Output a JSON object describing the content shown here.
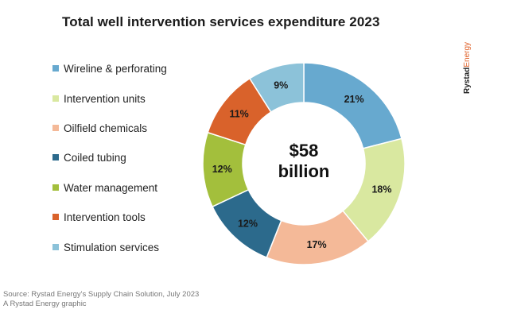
{
  "title": "Total well intervention services expenditure 2023",
  "brand": {
    "part1": "Rystad",
    "part2": "Energy"
  },
  "center_label": {
    "line1": "$58",
    "line2": "billion"
  },
  "source": {
    "line1": "Source: Rystad Energy's Supply Chain Solution, July 2023",
    "line2": "A Rystad Energy graphic"
  },
  "chart_data": {
    "type": "pie",
    "donut": true,
    "total_label": "$58 billion",
    "legend_position": "left",
    "categories": [
      "Wireline & perforating",
      "Intervention units",
      "Oilfield chemicals",
      "Coiled tubing",
      "Water management",
      "Intervention tools",
      "Stimulation services"
    ],
    "values": [
      21,
      18,
      17,
      12,
      12,
      11,
      9
    ],
    "value_labels": [
      "21%",
      "18%",
      "17%",
      "12%",
      "12%",
      "11%",
      "9%"
    ],
    "colors": [
      "#67a9cf",
      "#d9e8a0",
      "#f4b998",
      "#2c6a8c",
      "#a3bf3c",
      "#d9622b",
      "#8cc2d9"
    ]
  }
}
